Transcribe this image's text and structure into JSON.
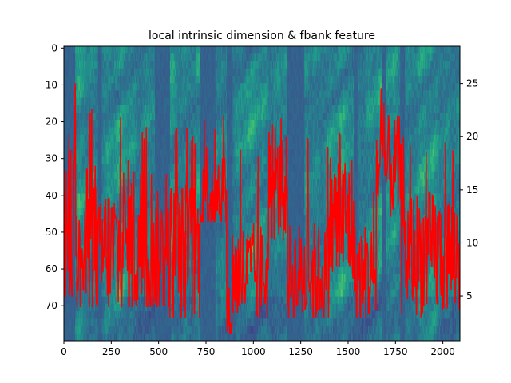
{
  "chart_data": {
    "type": "heatmap",
    "title": "local intrinsic dimension & fbank feature",
    "xlabel": "",
    "ylabel": "",
    "xlim": [
      0,
      2090
    ],
    "ylim_left": [
      79.5,
      -0.5
    ],
    "ylim_right": [
      0.8,
      28.5
    ],
    "x_ticks": [
      0,
      250,
      500,
      750,
      1000,
      1250,
      1500,
      1750,
      2000
    ],
    "y_left_ticks": [
      0,
      10,
      20,
      30,
      40,
      50,
      60,
      70
    ],
    "y_right_ticks": [
      5,
      10,
      15,
      20,
      25
    ],
    "grid": false,
    "heatmap": {
      "rows": 80,
      "colormap": "viridis",
      "value_range": [
        0,
        1
      ],
      "silent_segments": [
        [
          0,
          60
        ],
        [
          180,
          200
        ],
        [
          480,
          560
        ],
        [
          720,
          800
        ],
        [
          860,
          890
        ],
        [
          1180,
          1270
        ],
        [
          1530,
          1550
        ],
        [
          1680,
          1700
        ],
        [
          1775,
          1800
        ]
      ]
    },
    "series": [
      {
        "type": "line",
        "axis": "right",
        "color": "#ff0000",
        "segments": [
          {
            "x": [
              0,
              60
            ],
            "mean": 11,
            "spread": 10,
            "min": 5,
            "max": 24
          },
          {
            "x": [
              60,
              120
            ],
            "mean": 8,
            "spread": 5,
            "min": 4,
            "max": 25
          },
          {
            "x": [
              120,
              180
            ],
            "mean": 10,
            "spread": 8,
            "min": 4,
            "max": 24
          },
          {
            "x": [
              180,
              200
            ],
            "mean": 8,
            "spread": 6,
            "min": 4,
            "max": 25
          },
          {
            "x": [
              200,
              300
            ],
            "mean": 9,
            "spread": 7,
            "min": 4,
            "max": 22
          },
          {
            "x": [
              300,
              480
            ],
            "mean": 10,
            "spread": 8,
            "min": 4,
            "max": 21
          },
          {
            "x": [
              480,
              560
            ],
            "mean": 9,
            "spread": 6,
            "min": 4,
            "max": 17
          },
          {
            "x": [
              560,
              720
            ],
            "mean": 9,
            "spread": 7,
            "min": 3,
            "max": 21
          },
          {
            "x": [
              720,
              860
            ],
            "mean": 15,
            "spread": 5,
            "min": 12,
            "max": 22
          },
          {
            "x": [
              860,
              890
            ],
            "mean": 3,
            "spread": 3,
            "min": 1.5,
            "max": 13
          },
          {
            "x": [
              890,
              1080
            ],
            "mean": 7,
            "spread": 5,
            "min": 3,
            "max": 20
          },
          {
            "x": [
              1080,
              1180
            ],
            "mean": 15,
            "spread": 5,
            "min": 8,
            "max": 22
          },
          {
            "x": [
              1180,
              1400
            ],
            "mean": 7,
            "spread": 5,
            "min": 3,
            "max": 20
          },
          {
            "x": [
              1400,
              1530
            ],
            "mean": 12,
            "spread": 7,
            "min": 4,
            "max": 21
          },
          {
            "x": [
              1530,
              1650
            ],
            "mean": 7,
            "spread": 5,
            "min": 3,
            "max": 16
          },
          {
            "x": [
              1650,
              1780
            ],
            "mean": 17,
            "spread": 5,
            "min": 10,
            "max": 25
          },
          {
            "x": [
              1780,
              2090
            ],
            "mean": 9,
            "spread": 6,
            "min": 3,
            "max": 20
          }
        ]
      }
    ]
  }
}
